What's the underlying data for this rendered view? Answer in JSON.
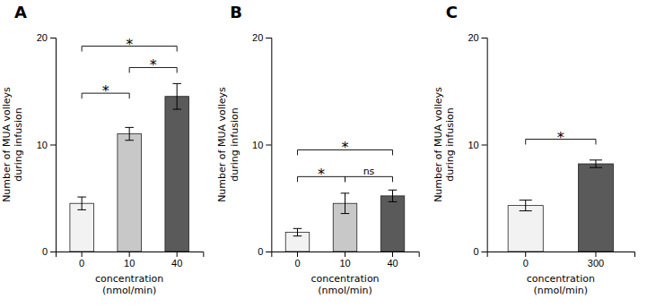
{
  "chart_data": [
    {
      "type": "bar",
      "title": "A",
      "categories": [
        "0",
        "10",
        "40"
      ],
      "values": [
        4.5,
        11.0,
        14.5
      ],
      "errors": [
        0.6,
        0.6,
        1.2
      ],
      "colors": [
        "#f2f2f2",
        "#c8c8c8",
        "#5a5a5a"
      ],
      "xlabel": "concentration\n(nmol/min)",
      "ylabel": "Number of MUA volleys\nduring infusion",
      "ylim": [
        0,
        20
      ],
      "yticks": [
        0,
        10,
        20
      ],
      "significance": [
        {
          "x1": 0,
          "x2": 1,
          "y": 14.8,
          "label": "*"
        },
        {
          "x1": 1,
          "x2": 2,
          "y": 17.2,
          "label": "*"
        },
        {
          "x1": 0,
          "x2": 2,
          "y": 19.2,
          "label": "*"
        }
      ]
    },
    {
      "type": "bar",
      "title": "B",
      "categories": [
        "0",
        "10",
        "40"
      ],
      "values": [
        1.8,
        4.5,
        5.2
      ],
      "errors": [
        0.35,
        0.95,
        0.55
      ],
      "colors": [
        "#f2f2f2",
        "#c8c8c8",
        "#5a5a5a"
      ],
      "xlabel": "concentration\n(nmol/min)",
      "ylabel": "Number of MUA volleys\nduring infusion",
      "ylim": [
        0,
        20
      ],
      "yticks": [
        0,
        10,
        20
      ],
      "significance": [
        {
          "x1": 0,
          "x2": 1,
          "y": 7.0,
          "label": "*"
        },
        {
          "x1": 1,
          "x2": 2,
          "y": 7.0,
          "label": "ns"
        },
        {
          "x1": 0,
          "x2": 2,
          "y": 9.5,
          "label": "*"
        }
      ]
    },
    {
      "type": "bar",
      "title": "C",
      "categories": [
        "0",
        "300"
      ],
      "values": [
        4.3,
        8.2
      ],
      "errors": [
        0.5,
        0.35
      ],
      "colors": [
        "#f2f2f2",
        "#5a5a5a"
      ],
      "xlabel": "concentration\n(nmol/min)",
      "ylabel": "Number of MUA volleys\nduring infusion",
      "ylim": [
        0,
        20
      ],
      "yticks": [
        0,
        10,
        20
      ],
      "significance": [
        {
          "x1": 0,
          "x2": 1,
          "y": 10.5,
          "label": "*"
        }
      ]
    }
  ]
}
